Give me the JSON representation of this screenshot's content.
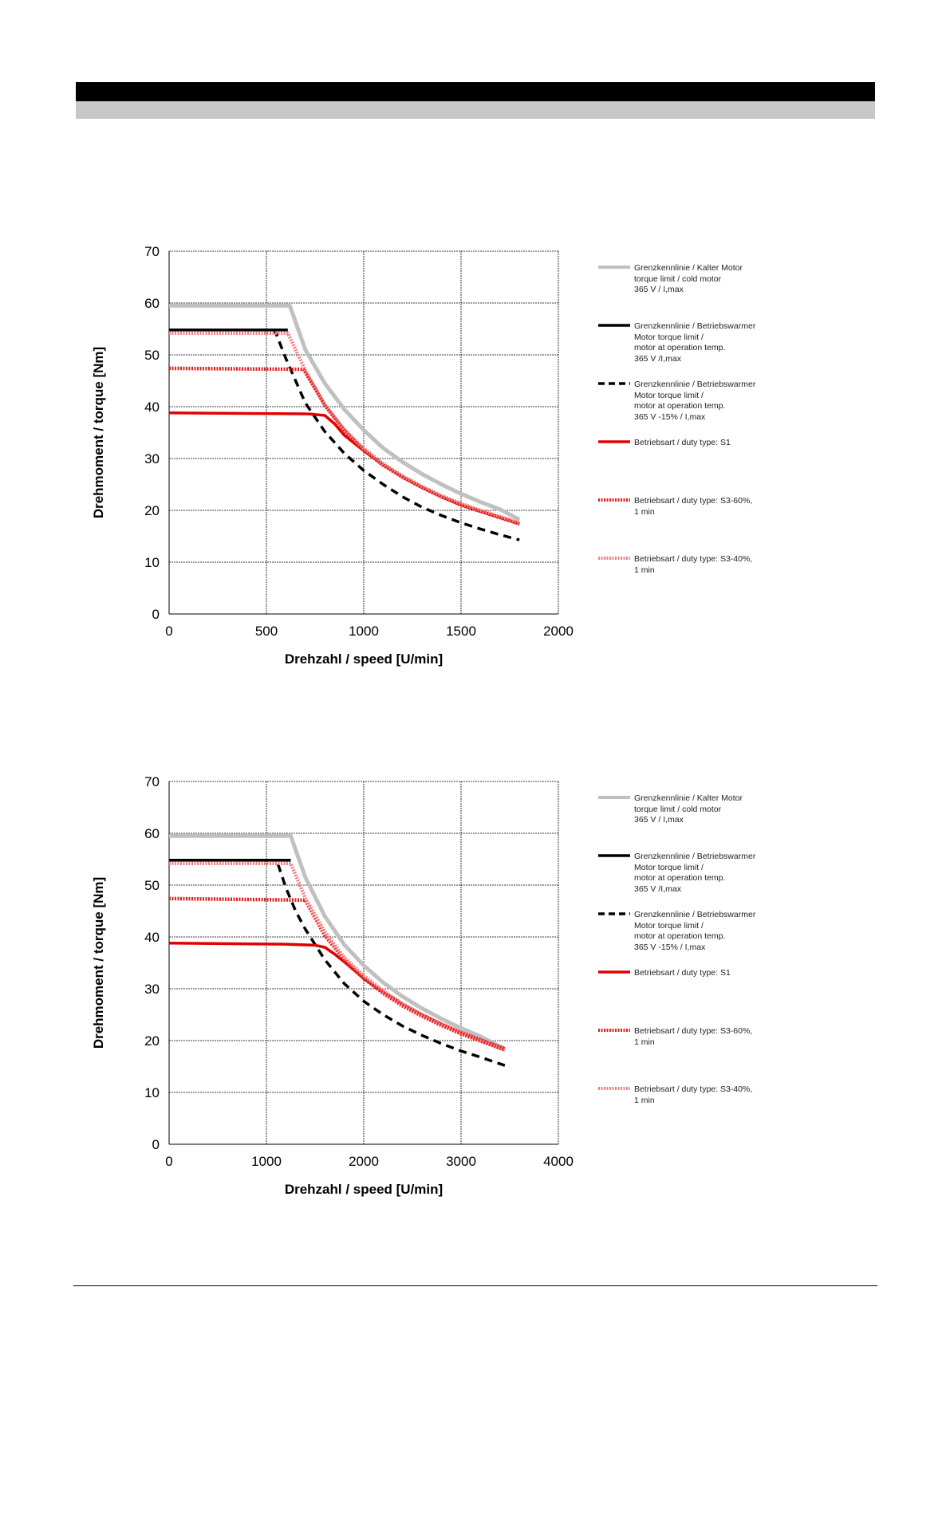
{
  "colors": {
    "cold": "#c0c0c0",
    "warm": "#000000",
    "s1": "#e00000",
    "s3_60": "#e02020",
    "s3_40": "#f08080",
    "header_black": "#000000",
    "header_gray": "#c8c8c8"
  },
  "legend": [
    {
      "key": "cold",
      "style": "solid-gray",
      "text": "Grenzkennlinie / Kalter Motor\ntorque limit / cold  motor\n365 V / I,max"
    },
    {
      "key": "warm",
      "style": "solid-black",
      "text": "Grenzkennlinie / Betriebswarmer\nMotor              torque limit /\nmotor at operation temp.\n365 V /I,max"
    },
    {
      "key": "warm15",
      "style": "dashed-black",
      "text": "Grenzkennlinie / Betriebswarmer\nMotor              torque limit /\nmotor at operation temp.\n365 V  -15% / I,max"
    },
    {
      "key": "s1",
      "style": "solid-red",
      "text": "Betriebsart / duty type: S1"
    },
    {
      "key": "s3_60",
      "style": "hatched-red",
      "text": "Betriebsart / duty type: S3-60%,\n1 min"
    },
    {
      "key": "s3_40",
      "style": "hatched-pink",
      "text": "Betriebsart / duty type: S3-40%,\n1 min"
    }
  ],
  "chart_data": [
    {
      "type": "line",
      "xlabel": "Drehzahl / speed [U/min]",
      "ylabel": "Drehmoment / torque [Nm]",
      "xlim": [
        0,
        2000
      ],
      "ylim": [
        0,
        70
      ],
      "xticks": [
        "0",
        "500",
        "1000",
        "1500",
        "2000"
      ],
      "yticks": [
        "0",
        "10",
        "20",
        "30",
        "40",
        "50",
        "60",
        "70"
      ],
      "grid": true,
      "legend_position": "right",
      "series": [
        {
          "key": "cold",
          "x": [
            0,
            620,
            700,
            800,
            900,
            1000,
            1100,
            1200,
            1300,
            1400,
            1500,
            1600,
            1700,
            1800
          ],
          "y": [
            59.5,
            59.5,
            51,
            44.5,
            39.5,
            35.5,
            32,
            29.3,
            27,
            25,
            23.2,
            21.6,
            20.2,
            18.2
          ]
        },
        {
          "key": "warm",
          "x": [
            0,
            610
          ],
          "y": [
            54.8,
            54.8
          ]
        },
        {
          "key": "warm15",
          "x": [
            540,
            600,
            700,
            800,
            900,
            1000,
            1100,
            1200,
            1300,
            1400,
            1500,
            1600,
            1700,
            1800
          ],
          "y": [
            55,
            49.3,
            40.7,
            35.2,
            31,
            27.7,
            25,
            22.6,
            20.6,
            19,
            17.6,
            16.4,
            15.3,
            14.3
          ]
        },
        {
          "key": "s1",
          "x": [
            0,
            720,
            800,
            850,
            900,
            1000,
            1100,
            1200,
            1300,
            1400,
            1500,
            1600,
            1700,
            1800
          ],
          "y": [
            38.8,
            38.6,
            38.3,
            36.7,
            34.5,
            31.5,
            28.8,
            26.4,
            24.4,
            22.6,
            21,
            19.8,
            18.6,
            17.4
          ]
        },
        {
          "key": "s3_60",
          "x": [
            0,
            690,
            750,
            800,
            900,
            1000,
            1100,
            1200,
            1300,
            1400,
            1500,
            1600,
            1700,
            1800
          ],
          "y": [
            47.4,
            47.2,
            43.5,
            40.3,
            35.4,
            31.6,
            28.7,
            26.4,
            24.4,
            22.6,
            21.1,
            19.8,
            18.6,
            17.4
          ]
        },
        {
          "key": "s3_40",
          "x": [
            0,
            610,
            700,
            800,
            900,
            1000,
            1100,
            1200,
            1300,
            1400,
            1500,
            1600,
            1700,
            1800
          ],
          "y": [
            54.2,
            54.2,
            47,
            40.3,
            35.6,
            31.9,
            29,
            26.6,
            24.6,
            22.8,
            21.3,
            20,
            18.8,
            17.6
          ]
        }
      ]
    },
    {
      "type": "line",
      "xlabel": "Drehzahl / speed [U/min]",
      "ylabel": "Drehmoment / torque [Nm]",
      "xlim": [
        0,
        4000
      ],
      "ylim": [
        0,
        70
      ],
      "xticks": [
        "0",
        "1000",
        "2000",
        "3000",
        "4000"
      ],
      "yticks": [
        "0",
        "10",
        "20",
        "30",
        "40",
        "50",
        "60",
        "70"
      ],
      "grid": true,
      "legend_position": "right",
      "series": [
        {
          "key": "cold",
          "x": [
            0,
            1250,
            1400,
            1600,
            1800,
            2000,
            2200,
            2400,
            2600,
            2800,
            3000,
            3200,
            3450
          ],
          "y": [
            59.5,
            59.5,
            51.5,
            44,
            38.5,
            34.5,
            31.2,
            28.5,
            26.2,
            24.2,
            22.4,
            20.8,
            18.4
          ]
        },
        {
          "key": "warm",
          "x": [
            0,
            1250
          ],
          "y": [
            54.8,
            54.8
          ]
        },
        {
          "key": "warm15",
          "x": [
            1120,
            1200,
            1300,
            1400,
            1600,
            1800,
            2000,
            2200,
            2400,
            2600,
            2800,
            3000,
            3200,
            3450
          ],
          "y": [
            54,
            49.5,
            45,
            41.5,
            35.6,
            31,
            27.6,
            25,
            22.8,
            21,
            19.4,
            18,
            16.8,
            15.2
          ]
        },
        {
          "key": "s1",
          "x": [
            0,
            1200,
            1500,
            1600,
            1700,
            1800,
            2000,
            2200,
            2400,
            2600,
            2800,
            3000,
            3200,
            3450
          ],
          "y": [
            38.8,
            38.6,
            38.4,
            38,
            36.7,
            35.2,
            32,
            29.4,
            27,
            25,
            23.2,
            21.6,
            20.2,
            18.4
          ]
        },
        {
          "key": "s3_60",
          "x": [
            0,
            1400,
            1600,
            1800,
            2000,
            2200,
            2400,
            2600,
            2800,
            3000,
            3200,
            3450
          ],
          "y": [
            47.4,
            47.1,
            40.3,
            35.6,
            32,
            29.1,
            26.7,
            24.7,
            22.9,
            21.3,
            19.9,
            18.2
          ]
        },
        {
          "key": "s3_40",
          "x": [
            0,
            1250,
            1400,
            1600,
            1800,
            2000,
            2200,
            2400,
            2600,
            2800,
            3000,
            3200,
            3450
          ],
          "y": [
            54.2,
            54.2,
            47.5,
            41,
            36,
            32.5,
            29.6,
            27.1,
            25,
            23.2,
            21.6,
            20.1,
            18.2
          ]
        }
      ]
    }
  ]
}
